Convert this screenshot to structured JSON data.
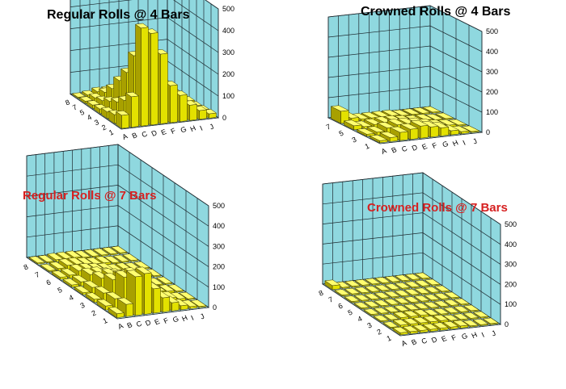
{
  "colors": {
    "wall": "#8fd8df",
    "floor": "#bfe9ec",
    "grid": "#1e2a30",
    "bar_top": "#ffff70",
    "bar_front": "#e3e100",
    "bar_side": "#a8a000",
    "bar_edge": "#3a3600"
  },
  "chart_data": [
    {
      "type": "bar3d",
      "title": "Regular Rolls @ 4 Bars",
      "title_color": "#000000",
      "zlim": [
        0,
        500
      ],
      "z_ticks": [
        "0",
        "100",
        "200",
        "300",
        "400",
        "500"
      ],
      "rows": [
        "1",
        "2",
        "3",
        "4",
        "5",
        "7",
        "8"
      ],
      "columns": [
        "A",
        "B",
        "C",
        "D",
        "E",
        "F",
        "G",
        "H",
        "I",
        "J"
      ],
      "values": [
        [
          60,
          140,
          450,
          420,
          320,
          170,
          120,
          70,
          40,
          20
        ],
        [
          40,
          100,
          300,
          280,
          220,
          160,
          100,
          60,
          30,
          15
        ],
        [
          30,
          70,
          200,
          200,
          150,
          110,
          70,
          40,
          20,
          10
        ],
        [
          20,
          50,
          140,
          130,
          100,
          70,
          50,
          30,
          15,
          10
        ],
        [
          15,
          30,
          80,
          80,
          60,
          40,
          30,
          20,
          10,
          5
        ],
        [
          10,
          20,
          40,
          40,
          30,
          20,
          15,
          10,
          5,
          5
        ],
        [
          5,
          10,
          20,
          20,
          15,
          10,
          10,
          5,
          5,
          5
        ]
      ]
    },
    {
      "type": "bar3d",
      "title": "Crowned Rolls @ 4 Bars",
      "title_color": "#000000",
      "zlim": [
        0,
        500
      ],
      "z_ticks": [
        "0",
        "100",
        "200",
        "300",
        "400",
        "500"
      ],
      "rows": [
        "1",
        "3",
        "5",
        "7"
      ],
      "columns": [
        "A",
        "B",
        "C",
        "D",
        "E",
        "F",
        "G",
        "H",
        "I",
        "J"
      ],
      "values": [
        [
          10,
          20,
          40,
          50,
          60,
          50,
          40,
          20,
          10,
          5
        ],
        [
          10,
          15,
          30,
          40,
          40,
          35,
          25,
          15,
          10,
          5
        ],
        [
          20,
          10,
          15,
          20,
          20,
          15,
          10,
          10,
          5,
          5
        ],
        [
          60,
          20,
          10,
          10,
          10,
          10,
          5,
          5,
          5,
          5
        ]
      ]
    },
    {
      "type": "bar3d",
      "title": "Regular Rolls @ 7 Bars",
      "title_color": "#d62020",
      "zlim": [
        0,
        500
      ],
      "z_ticks": [
        "0",
        "100",
        "200",
        "300",
        "400",
        "500"
      ],
      "rows": [
        "1",
        "2",
        "3",
        "4",
        "5",
        "6",
        "7",
        "8"
      ],
      "columns": [
        "A",
        "B",
        "C",
        "D",
        "E",
        "F",
        "G",
        "H",
        "I",
        "J"
      ],
      "values": [
        [
          20,
          60,
          190,
          200,
          120,
          70,
          40,
          20,
          10,
          5
        ],
        [
          20,
          50,
          150,
          160,
          100,
          60,
          30,
          20,
          10,
          5
        ],
        [
          15,
          40,
          100,
          110,
          80,
          50,
          30,
          15,
          10,
          5
        ],
        [
          10,
          30,
          70,
          80,
          60,
          40,
          20,
          10,
          5,
          5
        ],
        [
          10,
          20,
          50,
          50,
          40,
          30,
          20,
          10,
          5,
          5
        ],
        [
          10,
          15,
          30,
          30,
          25,
          20,
          10,
          10,
          5,
          5
        ],
        [
          5,
          10,
          20,
          20,
          15,
          10,
          10,
          5,
          5,
          5
        ],
        [
          5,
          5,
          10,
          10,
          10,
          5,
          5,
          5,
          5,
          5
        ]
      ]
    },
    {
      "type": "bar3d",
      "title": "Crowned Rolls @ 7 Bars",
      "title_color": "#d62020",
      "zlim": [
        0,
        500
      ],
      "z_ticks": [
        "0",
        "100",
        "200",
        "300",
        "400",
        "500"
      ],
      "rows": [
        "1",
        "2",
        "3",
        "4",
        "5",
        "6",
        "7",
        "8"
      ],
      "columns": [
        "A",
        "B",
        "C",
        "D",
        "E",
        "F",
        "G",
        "H",
        "I",
        "J"
      ],
      "values": [
        [
          10,
          10,
          10,
          10,
          10,
          10,
          10,
          5,
          5,
          5
        ],
        [
          5,
          10,
          10,
          10,
          10,
          10,
          5,
          5,
          5,
          5
        ],
        [
          5,
          5,
          10,
          10,
          10,
          5,
          5,
          5,
          5,
          5
        ],
        [
          5,
          5,
          5,
          5,
          5,
          5,
          5,
          5,
          5,
          5
        ],
        [
          5,
          5,
          5,
          5,
          5,
          5,
          5,
          5,
          5,
          5
        ],
        [
          5,
          5,
          5,
          5,
          5,
          5,
          5,
          5,
          5,
          5
        ],
        [
          5,
          5,
          5,
          5,
          5,
          5,
          5,
          5,
          5,
          5
        ],
        [
          20,
          5,
          5,
          5,
          5,
          5,
          5,
          5,
          5,
          5
        ]
      ]
    }
  ]
}
